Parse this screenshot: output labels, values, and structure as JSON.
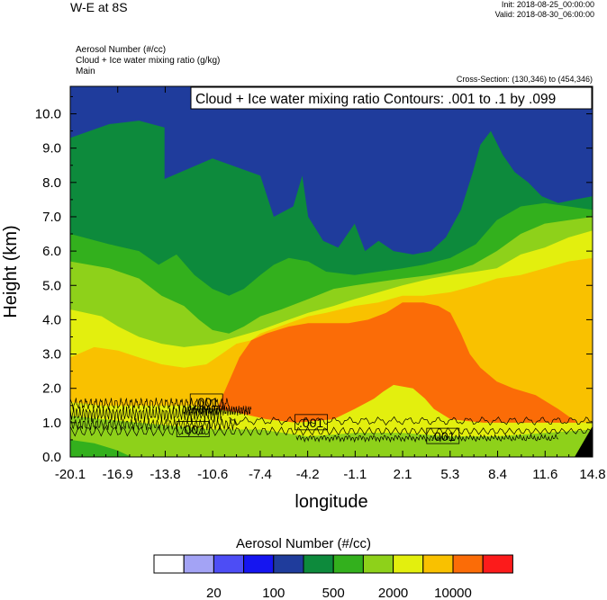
{
  "header": {
    "title": "W-E at 8S",
    "init": "Init: 2018-08-25_00:00:00",
    "valid": "Valid: 2018-08-30_06:00:00",
    "fields": [
      "Aerosol Number   (#/cc)",
      "Cloud + Ice water mixing ratio   (g/kg)",
      "Main"
    ],
    "cross_section": "Cross-Section: (130,346) to (454,346)"
  },
  "chart_data": {
    "type": "heatmap",
    "title": "W-E at 8S",
    "xlabel": "longitude",
    "ylabel": "Height (km)",
    "x_ticks": [
      "-20.1",
      "-16.9",
      "-13.8",
      "-10.6",
      "-7.4",
      "-4.2",
      "-1.1",
      "2.1",
      "5.3",
      "8.4",
      "11.6",
      "14.8"
    ],
    "xlim": [
      -20.1,
      14.8
    ],
    "y_ticks": [
      "0.0",
      "1.0",
      "2.0",
      "3.0",
      "4.0",
      "5.0",
      "6.0",
      "7.0",
      "8.0",
      "9.0",
      "10.0"
    ],
    "ylim": [
      0,
      10.8
    ],
    "contour_info": "Cloud + Ice water mixing ratio Contours: .001 to .1 by .099",
    "contour_labels": [
      {
        "text": ".001",
        "x": -11.0,
        "y": 1.6
      },
      {
        "text": ".001",
        "x": -11.9,
        "y": 0.8
      },
      {
        "text": ".001",
        "x": -4.0,
        "y": 1.0
      },
      {
        "text": ".001",
        "x": 4.8,
        "y": 0.6
      }
    ],
    "layers": [
      {
        "name": "n1000",
        "color": "#1f3c9c",
        "top": [
          [
            -20.1,
            10.8
          ],
          [
            14.8,
            10.8
          ]
        ]
      },
      {
        "name": "n500",
        "color": "#0d8a3c",
        "top": [
          [
            -20.1,
            9.3
          ],
          [
            -17.5,
            9.7
          ],
          [
            -15.5,
            9.8
          ],
          [
            -13.8,
            9.6
          ],
          [
            -13.8,
            8.1
          ],
          [
            -10.6,
            8.7
          ],
          [
            -7.4,
            8.2
          ],
          [
            -6.5,
            7.0
          ],
          [
            -5.2,
            7.3
          ],
          [
            -4.6,
            8.2
          ],
          [
            -4.2,
            7.0
          ],
          [
            -3.2,
            6.3
          ],
          [
            -2.2,
            6.1
          ],
          [
            -1.1,
            6.8
          ],
          [
            -0.4,
            6.0
          ],
          [
            0.5,
            6.3
          ],
          [
            1.5,
            6.0
          ],
          [
            2.8,
            5.9
          ],
          [
            4.0,
            6.0
          ],
          [
            5.0,
            6.4
          ],
          [
            6.0,
            7.2
          ],
          [
            6.8,
            8.3
          ],
          [
            7.3,
            9.1
          ],
          [
            8.0,
            9.5
          ],
          [
            8.8,
            8.8
          ],
          [
            9.6,
            8.3
          ],
          [
            10.5,
            8.0
          ],
          [
            11.4,
            7.6
          ],
          [
            12.5,
            7.4
          ],
          [
            13.6,
            7.5
          ],
          [
            14.8,
            7.6
          ]
        ]
      },
      {
        "name": "n300",
        "color": "#33b01d",
        "top": [
          [
            -20.1,
            6.5
          ],
          [
            -17.5,
            6.2
          ],
          [
            -15.5,
            6.0
          ],
          [
            -14.2,
            5.6
          ],
          [
            -13.0,
            5.9
          ],
          [
            -11.8,
            5.3
          ],
          [
            -10.6,
            4.9
          ],
          [
            -9.5,
            4.7
          ],
          [
            -8.5,
            4.9
          ],
          [
            -7.4,
            5.3
          ],
          [
            -6.5,
            5.6
          ],
          [
            -5.5,
            5.8
          ],
          [
            -4.2,
            5.7
          ],
          [
            -3.0,
            5.4
          ],
          [
            -1.1,
            5.3
          ],
          [
            0.5,
            5.4
          ],
          [
            2.1,
            5.5
          ],
          [
            3.5,
            5.6
          ],
          [
            5.3,
            5.8
          ],
          [
            7.0,
            6.2
          ],
          [
            8.4,
            6.9
          ],
          [
            10.0,
            7.3
          ],
          [
            11.6,
            7.4
          ],
          [
            13.2,
            7.3
          ],
          [
            14.8,
            7.2
          ]
        ]
      },
      {
        "name": "n2000",
        "color": "#8ed11a",
        "top": [
          [
            -20.1,
            5.7
          ],
          [
            -17.5,
            5.5
          ],
          [
            -15.5,
            5.2
          ],
          [
            -14.0,
            4.7
          ],
          [
            -12.5,
            4.4
          ],
          [
            -11.5,
            4.0
          ],
          [
            -10.6,
            3.7
          ],
          [
            -9.5,
            3.6
          ],
          [
            -8.5,
            3.8
          ],
          [
            -7.4,
            4.1
          ],
          [
            -6.0,
            4.3
          ],
          [
            -4.2,
            4.6
          ],
          [
            -2.5,
            4.9
          ],
          [
            -1.1,
            5.0
          ],
          [
            0.5,
            5.1
          ],
          [
            2.1,
            5.2
          ],
          [
            4.0,
            5.3
          ],
          [
            5.3,
            5.4
          ],
          [
            6.8,
            5.6
          ],
          [
            8.4,
            6.0
          ],
          [
            10.0,
            6.5
          ],
          [
            11.6,
            6.8
          ],
          [
            13.2,
            6.9
          ],
          [
            14.8,
            7.0
          ]
        ]
      },
      {
        "name": "n3000",
        "color": "#e3ef0e",
        "top": [
          [
            -20.1,
            4.3
          ],
          [
            -18.0,
            4.1
          ],
          [
            -16.9,
            3.8
          ],
          [
            -15.5,
            3.5
          ],
          [
            -14.0,
            3.3
          ],
          [
            -12.5,
            3.2
          ],
          [
            -10.6,
            3.3
          ],
          [
            -9.0,
            3.5
          ],
          [
            -7.4,
            3.7
          ],
          [
            -5.5,
            4.0
          ],
          [
            -4.2,
            4.2
          ],
          [
            -2.5,
            4.4
          ],
          [
            -1.1,
            4.6
          ],
          [
            0.5,
            4.8
          ],
          [
            2.1,
            5.0
          ],
          [
            4.0,
            5.2
          ],
          [
            5.3,
            5.3
          ],
          [
            7.0,
            5.4
          ],
          [
            8.4,
            5.5
          ],
          [
            10.0,
            5.9
          ],
          [
            11.6,
            6.1
          ],
          [
            13.2,
            6.4
          ],
          [
            14.8,
            6.6
          ]
        ]
      },
      {
        "name": "n5000",
        "color": "#f9c100",
        "top": [
          [
            -20.1,
            2.9
          ],
          [
            -18.5,
            3.2
          ],
          [
            -16.9,
            3.1
          ],
          [
            -15.5,
            2.9
          ],
          [
            -14.0,
            2.7
          ],
          [
            -12.5,
            2.6
          ],
          [
            -11.0,
            2.7
          ],
          [
            -10.0,
            3.0
          ],
          [
            -9.0,
            3.3
          ],
          [
            -8.0,
            3.4
          ],
          [
            -7.4,
            3.6
          ],
          [
            -5.5,
            3.9
          ],
          [
            -4.2,
            4.1
          ],
          [
            -3.0,
            4.2
          ],
          [
            -1.1,
            4.4
          ],
          [
            0.5,
            4.5
          ],
          [
            2.1,
            4.7
          ],
          [
            3.5,
            4.7
          ],
          [
            5.3,
            4.8
          ],
          [
            7.0,
            5.0
          ],
          [
            8.4,
            5.2
          ],
          [
            10.0,
            5.3
          ],
          [
            11.6,
            5.5
          ],
          [
            13.2,
            5.7
          ],
          [
            14.8,
            5.8
          ]
        ]
      },
      {
        "name": "n8000",
        "color": "#fb6c07",
        "top": [
          [
            -20.1,
            0.0
          ],
          [
            -10.2,
            0.0
          ],
          [
            -10.2,
            1.5
          ],
          [
            -9.5,
            2.2
          ],
          [
            -8.8,
            2.9
          ],
          [
            -8.0,
            3.4
          ],
          [
            -7.0,
            3.6
          ],
          [
            -5.5,
            3.8
          ],
          [
            -4.2,
            3.9
          ],
          [
            -3.0,
            3.9
          ],
          [
            -1.5,
            3.9
          ],
          [
            -0.2,
            4.0
          ],
          [
            1.0,
            4.2
          ],
          [
            2.1,
            4.5
          ],
          [
            3.5,
            4.5
          ],
          [
            4.5,
            4.4
          ],
          [
            5.3,
            4.2
          ],
          [
            6.0,
            3.6
          ],
          [
            6.6,
            3.0
          ],
          [
            7.3,
            2.6
          ],
          [
            8.4,
            2.2
          ],
          [
            9.5,
            2.0
          ],
          [
            11.0,
            1.8
          ],
          [
            12.5,
            1.4
          ],
          [
            13.8,
            1.0
          ],
          [
            14.8,
            1.0
          ]
        ]
      },
      {
        "name": "n3000-low",
        "color": "#e3ef0e",
        "top": [
          [
            -20.1,
            1.6
          ],
          [
            -18.0,
            1.5
          ],
          [
            -15.5,
            1.5
          ],
          [
            -12.0,
            1.5
          ],
          [
            -9.0,
            1.3
          ],
          [
            -7.0,
            1.1
          ],
          [
            -5.0,
            1.0
          ],
          [
            -2.5,
            1.1
          ],
          [
            -1.1,
            1.4
          ],
          [
            0.2,
            1.7
          ],
          [
            0.8,
            1.9
          ],
          [
            1.5,
            2.1
          ],
          [
            2.8,
            2.0
          ],
          [
            3.6,
            1.7
          ],
          [
            4.2,
            1.4
          ],
          [
            5.3,
            1.1
          ],
          [
            7.5,
            1.0
          ],
          [
            9.5,
            1.0
          ],
          [
            11.6,
            1.0
          ],
          [
            13.2,
            1.0
          ],
          [
            14.8,
            1.0
          ]
        ]
      },
      {
        "name": "n2000-low",
        "color": "#8ed11a",
        "top": [
          [
            -20.1,
            1.2
          ],
          [
            -18.0,
            1.1
          ],
          [
            -15.5,
            1.0
          ],
          [
            -13.0,
            0.9
          ],
          [
            -10.6,
            0.8
          ],
          [
            -7.4,
            0.8
          ],
          [
            -4.2,
            0.6
          ],
          [
            -1.1,
            0.7
          ],
          [
            2.1,
            0.7
          ],
          [
            5.3,
            0.6
          ],
          [
            8.4,
            0.6
          ],
          [
            11.6,
            0.7
          ],
          [
            14.8,
            0.8
          ]
        ]
      },
      {
        "name": "n300-low",
        "color": "#33b01d",
        "top": [
          [
            -20.1,
            0.5
          ],
          [
            -18.5,
            0.4
          ],
          [
            -17.0,
            0.2
          ],
          [
            -16.0,
            0.0
          ],
          [
            14.8,
            0.0
          ]
        ]
      }
    ],
    "legend": {
      "title": "Aerosol Number  (#/cc)",
      "colors": [
        "#ffffff",
        "#a3a3f5",
        "#4d4df5",
        "#1515f0",
        "#1f3c9c",
        "#0d8a3c",
        "#33b01d",
        "#8ed11a",
        "#e3ef0e",
        "#f9c100",
        "#fb6c07",
        "#fc1b1b"
      ],
      "labels": [
        "20",
        "100",
        "500",
        "2000",
        "10000"
      ]
    }
  }
}
